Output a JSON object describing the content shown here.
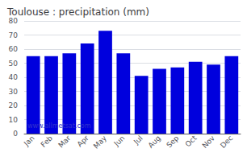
{
  "chart_data": {
    "type": "bar",
    "title": "Toulouse : precipitation (mm)",
    "categories": [
      "Jan",
      "Feb",
      "Mar",
      "Apr",
      "May",
      "Jun",
      "Jul",
      "Aug",
      "Sep",
      "Oct",
      "Nov",
      "Dec"
    ],
    "values": [
      55,
      55,
      57,
      64,
      73,
      57,
      41,
      46,
      47,
      51,
      49,
      55
    ],
    "color": "#0000dd",
    "ylim": [
      0,
      80
    ],
    "yticks": [
      0,
      10,
      20,
      30,
      40,
      50,
      60,
      70,
      80
    ],
    "grid": true,
    "annotations": [
      {
        "text": "www.allmetsat.com",
        "color": "#3333cc"
      }
    ]
  }
}
